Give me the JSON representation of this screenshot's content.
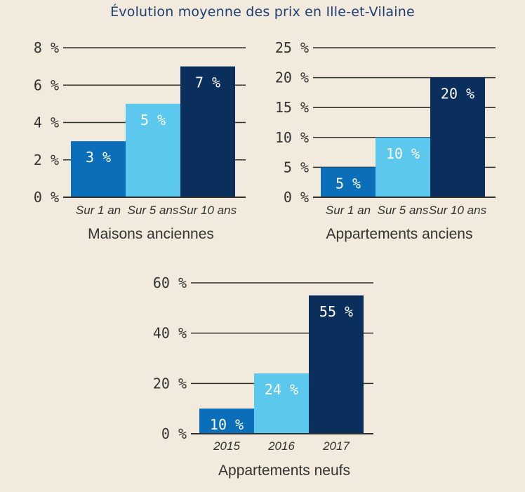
{
  "title": "Évolution moyenne des prix en Ille-et-Vilaine",
  "colors": [
    "#0a6fb8",
    "#5cc8ee",
    "#0b2f5c"
  ],
  "chart_data": [
    {
      "type": "bar",
      "title": "Maisons anciennes",
      "categories": [
        "Sur 1 an",
        "Sur 5 ans",
        "Sur 10 ans"
      ],
      "values": [
        3,
        5,
        7
      ],
      "value_labels": [
        "3 %",
        "5 %",
        "7 %"
      ],
      "ylim": [
        0,
        8
      ],
      "yticks": [
        0,
        2,
        4,
        6,
        8
      ],
      "ytick_labels": [
        "0 %",
        "2 %",
        "4 %",
        "6 %",
        "8 %"
      ],
      "grid": true
    },
    {
      "type": "bar",
      "title": "Appartements anciens",
      "categories": [
        "Sur 1 an",
        "Sur 5 ans",
        "Sur 10 ans"
      ],
      "values": [
        5,
        10,
        20
      ],
      "value_labels": [
        "5 %",
        "10 %",
        "20 %"
      ],
      "ylim": [
        0,
        25
      ],
      "yticks": [
        0,
        5,
        10,
        15,
        20,
        25
      ],
      "ytick_labels": [
        "0 %",
        "5 %",
        "10 %",
        "15 %",
        "20 %",
        "25 %"
      ],
      "grid": true
    },
    {
      "type": "bar",
      "title": "Appartements neufs",
      "categories": [
        "2015",
        "2016",
        "2017"
      ],
      "values": [
        10,
        24,
        55
      ],
      "value_labels": [
        "10 %",
        "24 %",
        "55 %"
      ],
      "ylim": [
        0,
        60
      ],
      "yticks": [
        0,
        20,
        40,
        60
      ],
      "ytick_labels": [
        "0 %",
        "20 %",
        "40 %",
        "60 %"
      ],
      "grid": true
    }
  ]
}
